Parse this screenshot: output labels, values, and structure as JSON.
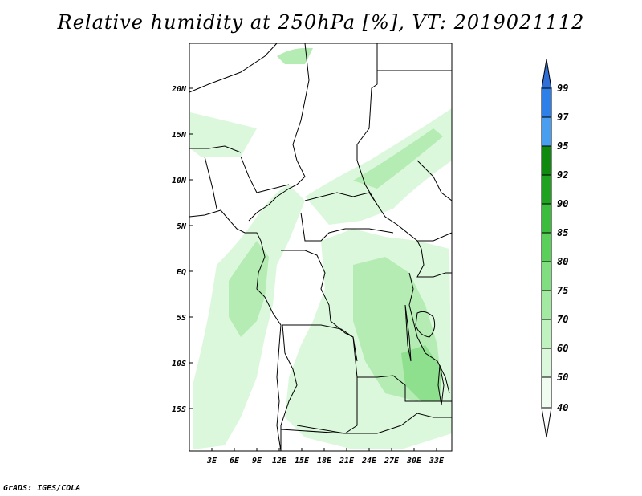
{
  "title": "Relative humidity at 250hPa [%], VT: 2019021112",
  "credit": "GrADS: IGES/COLA",
  "map": {
    "lat_labels": [
      "20N",
      "15N",
      "10N",
      "5N",
      "EQ",
      "5S",
      "10S",
      "15S"
    ],
    "lon_labels": [
      "3E",
      "6E",
      "9E",
      "12E",
      "15E",
      "18E",
      "21E",
      "24E",
      "27E",
      "30E",
      "33E"
    ]
  },
  "colorbar": {
    "levels": [
      "99",
      "97",
      "95",
      "92",
      "90",
      "85",
      "80",
      "75",
      "70",
      "60",
      "50",
      "40"
    ],
    "colors": [
      "#2f6fd6",
      "#2f7fe8",
      "#4a9ef0",
      "#0f8a0f",
      "#1fa21f",
      "#3cbc3c",
      "#5ad05a",
      "#80de80",
      "#a2eaa2",
      "#c0f2c0",
      "#dcf8dc",
      "#f0fcf0",
      "#ffffff"
    ]
  },
  "colors": {
    "land_outline": "#000000",
    "moist_light": "#dcf8dc",
    "moist_mid": "#b4ecb4",
    "moist_strong": "#8ee08e"
  }
}
